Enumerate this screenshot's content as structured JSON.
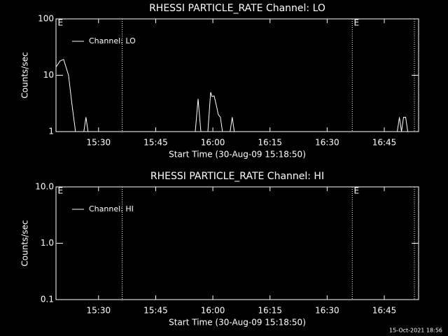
{
  "chart_data": [
    {
      "type": "line",
      "title": "RHESSI PARTICLE_RATE Channel: LO",
      "xlabel": "Start Time (30-Aug-09 15:18:50)",
      "ylabel": "Counts/sec",
      "xlim": [
        918.83,
        1014
      ],
      "ylim": [
        1,
        100
      ],
      "log_y": true,
      "xticks": [
        {
          "value": 930,
          "label": "15:30"
        },
        {
          "value": 945,
          "label": "15:45"
        },
        {
          "value": 960,
          "label": "16:00"
        },
        {
          "value": 975,
          "label": "16:15"
        },
        {
          "value": 990,
          "label": "16:30"
        },
        {
          "value": 1005,
          "label": "16:45"
        }
      ],
      "yticks": [
        1,
        10,
        100
      ],
      "vlines": [
        936.2,
        996.6,
        1012.9
      ],
      "annotations": [
        {
          "text": "E",
          "x": 919.3
        },
        {
          "text": "E",
          "x": 997.0
        }
      ],
      "legend": "upper left",
      "series": [
        {
          "name": "Channel: LO",
          "color": "#ffffff",
          "x": [
            918.83,
            919.93,
            920.84,
            922.12,
            923.03,
            923.95,
            null,
            926.14,
            926.69,
            927.24,
            null,
            955.39,
            956.12,
            956.86,
            null,
            958.69,
            959.42,
            959.78,
            960.33,
            960.88,
            961.43,
            961.98,
            962.52,
            null,
            964.53,
            965.08,
            965.63,
            null,
            1008.41,
            1008.96,
            1009.51,
            1010.05,
            1010.6,
            1011.15,
            1011.7
          ],
          "values": [
            14,
            18,
            19,
            10,
            3,
            1,
            null,
            1,
            1.8,
            1,
            null,
            1,
            3.8,
            1,
            null,
            1,
            5,
            4.2,
            4.3,
            3,
            2,
            1.8,
            1,
            null,
            1,
            1.8,
            1,
            null,
            1,
            1.8,
            1,
            1.8,
            1.8,
            1,
            1
          ]
        }
      ]
    },
    {
      "type": "line",
      "title": "RHESSI PARTICLE_RATE Channel: HI",
      "xlabel": "Start Time (30-Aug-09 15:18:50)",
      "ylabel": "Counts/sec",
      "xlim": [
        918.83,
        1014
      ],
      "ylim": [
        0.1,
        10
      ],
      "log_y": true,
      "xticks": [
        {
          "value": 930,
          "label": "15:30"
        },
        {
          "value": 945,
          "label": "15:45"
        },
        {
          "value": 960,
          "label": "16:00"
        },
        {
          "value": 975,
          "label": "16:15"
        },
        {
          "value": 990,
          "label": "16:30"
        },
        {
          "value": 1005,
          "label": "16:45"
        }
      ],
      "yticks": [
        {
          "value": 0.1,
          "label": "0.1"
        },
        {
          "value": 1,
          "label": "1.0"
        },
        {
          "value": 10,
          "label": "10.0"
        }
      ],
      "vlines": [
        936.2,
        996.6,
        1012.9
      ],
      "annotations": [
        {
          "text": "E",
          "x": 919.3
        },
        {
          "text": "E",
          "x": 997.0
        }
      ],
      "legend": "upper left",
      "series": [
        {
          "name": "Channel: HI",
          "color": "#ffffff",
          "x": [],
          "values": []
        }
      ]
    }
  ],
  "footer": "15-Oct-2021 18:56"
}
